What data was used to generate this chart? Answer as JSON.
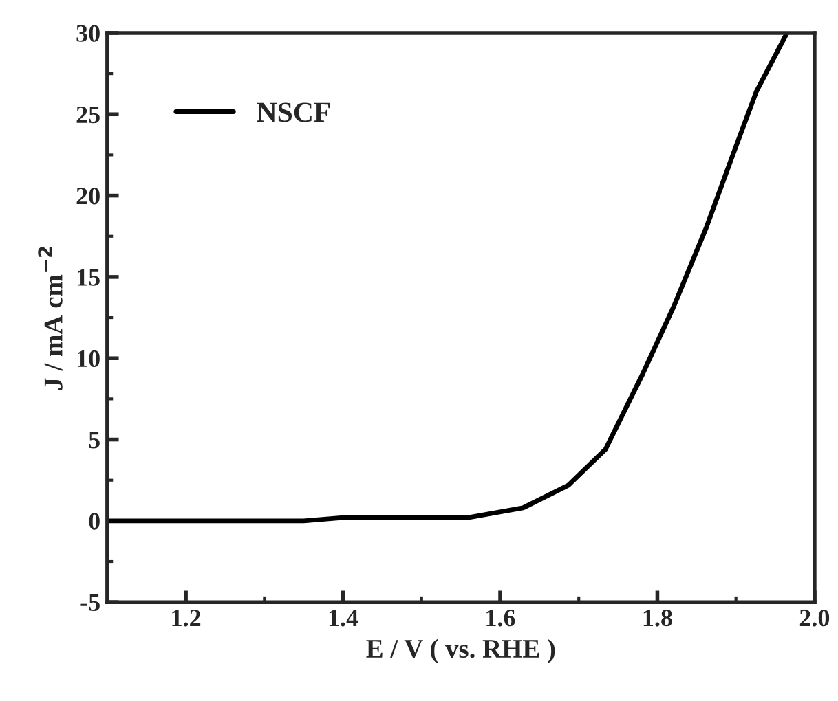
{
  "chart_data": {
    "type": "line",
    "xlabel": "E / V ( vs. RHE )",
    "ylabel": "J / mA cm$^{−2}$",
    "xlim": [
      1.1,
      2.0
    ],
    "xticks": [
      1.2,
      1.4,
      1.6,
      1.8,
      {
        "value": 2,
        "label": "2.0"
      }
    ],
    "ylim": [
      -5,
      30
    ],
    "yticks": [
      -5,
      0,
      5,
      10,
      15,
      20,
      25,
      30
    ],
    "legend": "top left",
    "grid": false,
    "series": [
      {
        "name": "NSCF",
        "color": "#000000",
        "x": [
          1.1,
          1.2,
          1.3,
          1.35,
          1.4,
          1.45,
          1.5,
          1.559,
          1.629,
          1.687,
          1.734,
          1.781,
          1.821,
          1.862,
          1.896,
          1.926,
          1.965
        ],
        "values": [
          0,
          0,
          0,
          0,
          0.2,
          0.2,
          0.2,
          0.2,
          0.8,
          2.2,
          4.4,
          9.0,
          13.2,
          18.0,
          22.5,
          26.4,
          30
        ]
      }
    ]
  }
}
